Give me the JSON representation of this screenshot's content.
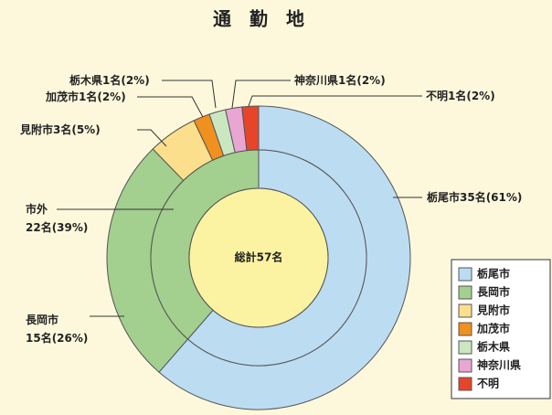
{
  "chart_data": {
    "type": "nested-donut",
    "title": "通　勤　地",
    "center_label": "総計57名",
    "outer": {
      "categories": [
        "栃尾市",
        "長岡市",
        "見附市",
        "加茂市",
        "栃木県",
        "神奈川県",
        "不明"
      ],
      "values": [
        35,
        15,
        3,
        1,
        1,
        1,
        1
      ],
      "colors": [
        "#bcdcf2",
        "#a3cf8f",
        "#fbdf8c",
        "#f0901e",
        "#cbe7c2",
        "#e9a6d3",
        "#e6452a"
      ],
      "value_labels": [
        [
          "栃尾市35名(61%)"
        ],
        [
          "長岡市",
          "15名(26%)"
        ],
        [
          "見附市3名(5%)"
        ],
        [
          "加茂市1名(2%)"
        ],
        [
          "栃木県1名(2%)"
        ],
        [
          "神奈川県1名(2%)"
        ],
        [
          "不明1名(2%)"
        ]
      ]
    },
    "inner": {
      "categories": [
        "栃尾市",
        "市外"
      ],
      "values": [
        35,
        22
      ],
      "colors": [
        "#bcdcf2",
        "#a3cf8f"
      ],
      "value_labels": [
        null,
        [
          "市外",
          "22名(39%)"
        ]
      ]
    },
    "legend": "lower right"
  }
}
